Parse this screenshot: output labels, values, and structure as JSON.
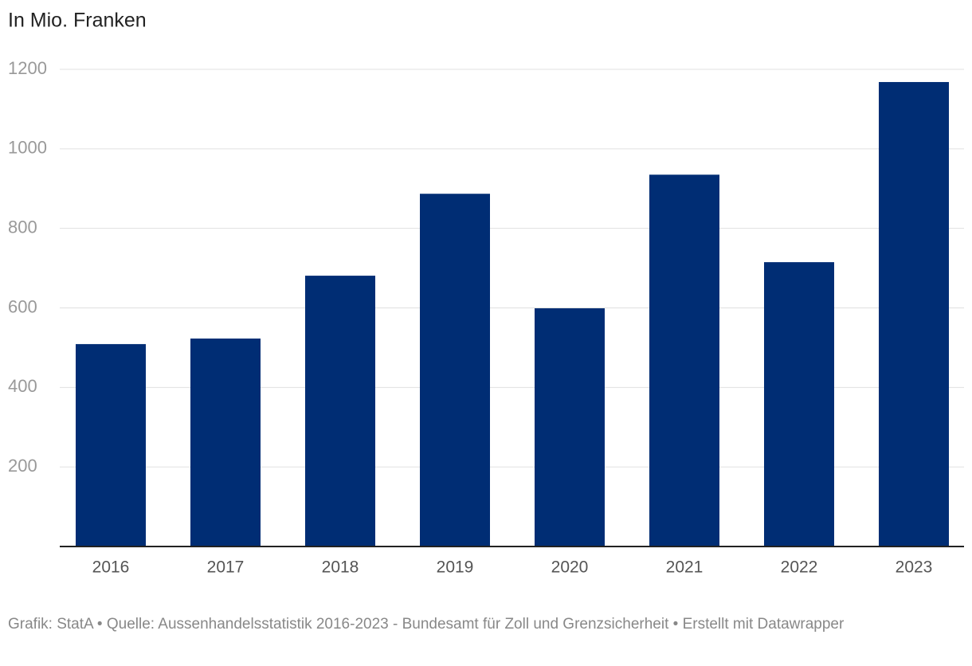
{
  "chart_data": {
    "type": "bar",
    "title": "In Mio. Franken",
    "categories": [
      "2016",
      "2017",
      "2018",
      "2019",
      "2020",
      "2021",
      "2022",
      "2023"
    ],
    "values": [
      509,
      523,
      681,
      887,
      599,
      935,
      715,
      1168
    ],
    "color": "#002d74",
    "ylim": [
      0,
      1200
    ],
    "yticks": [
      200,
      400,
      600,
      800,
      1000,
      1200
    ],
    "grid": true,
    "footer": "Grafik: StatA • Quelle: Aussenhandelsstatistik 2016-2023 - Bundesamt für Zoll und Grenzsicherheit • Erstellt mit Datawrapper"
  }
}
